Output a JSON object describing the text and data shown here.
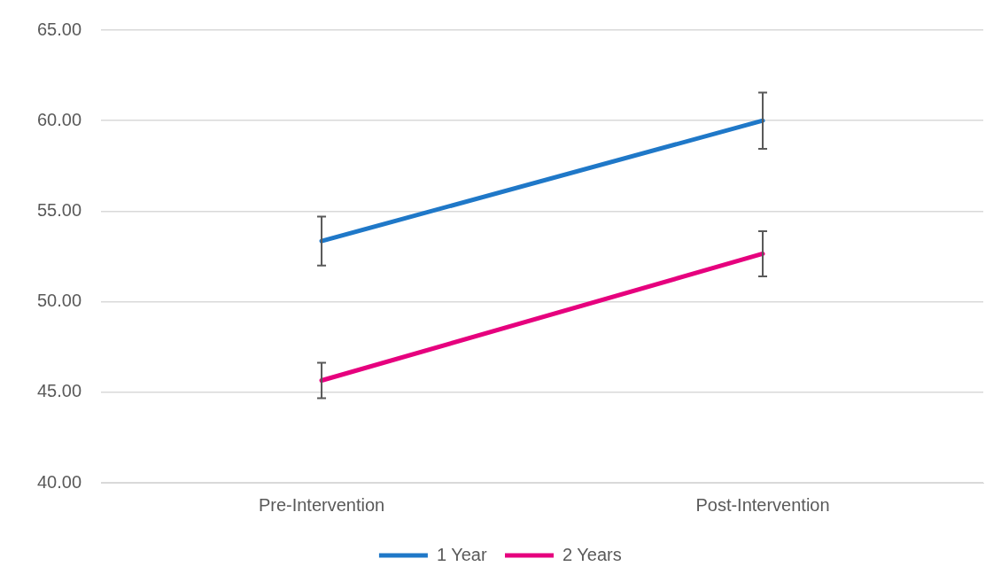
{
  "chart_data": {
    "type": "line",
    "categories": [
      "Pre-Intervention",
      "Post-Intervention"
    ],
    "series": [
      {
        "name": "1 Year",
        "color": "#1f78c8",
        "values": [
          53.35,
          60.0
        ],
        "errors": [
          1.35,
          1.55
        ]
      },
      {
        "name": "2 Years",
        "color": "#e6007e",
        "values": [
          45.65,
          52.65
        ],
        "errors": [
          0.98,
          1.25
        ]
      }
    ],
    "ylim": [
      40,
      65
    ],
    "yticks": [
      {
        "value": 40,
        "label": "40.00"
      },
      {
        "value": 45,
        "label": "45.00"
      },
      {
        "value": 50,
        "label": "50.00"
      },
      {
        "value": 55,
        "label": "55.00"
      },
      {
        "value": 60,
        "label": "60.00"
      },
      {
        "value": 65,
        "label": "65.00"
      }
    ],
    "grid": "y",
    "legend": "bottom",
    "marker": "none",
    "line_style": "solid"
  }
}
